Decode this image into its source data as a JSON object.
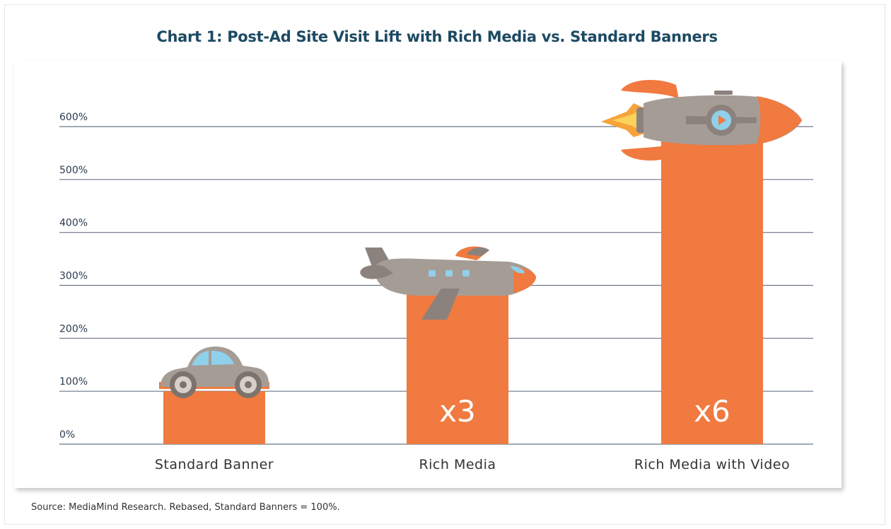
{
  "chart_data": {
    "type": "bar",
    "title": "Chart 1: Post-Ad Site Visit Lift with Rich Media vs. Standard Banners",
    "categories": [
      "Standard Banner",
      "Rich Media",
      "Rich Media with Video"
    ],
    "values": [
      100,
      300,
      600
    ],
    "data_labels": [
      "",
      "x3",
      "x6"
    ],
    "y_ticks": [
      "0%",
      "100%",
      "200%",
      "300%",
      "400%",
      "500%",
      "600%"
    ],
    "ylim": [
      0,
      600
    ],
    "grid": true,
    "bar_color": "#f07a3f",
    "icons": [
      "car-icon",
      "airplane-icon",
      "rocket-icon"
    ]
  },
  "source": "Source:  MediaMind Research.  Rebased, Standard Banners = 100%."
}
